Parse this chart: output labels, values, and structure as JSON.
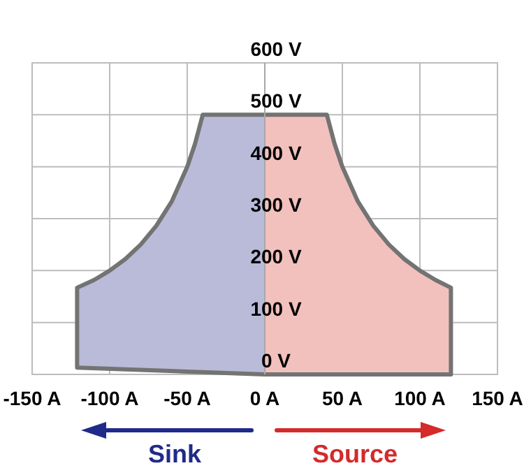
{
  "chart_data": {
    "type": "area",
    "xlim": [
      -150,
      150
    ],
    "ylim": [
      0,
      600
    ],
    "xticks": [
      {
        "value": -150,
        "label": "-150 A"
      },
      {
        "value": -100,
        "label": "-100 A"
      },
      {
        "value": -50,
        "label": "-50 A"
      },
      {
        "value": 0,
        "label": "0 A"
      },
      {
        "value": 50,
        "label": "50 A"
      },
      {
        "value": 100,
        "label": "100 A"
      },
      {
        "value": 150,
        "label": "150 A"
      }
    ],
    "yticks": [
      {
        "value": 0,
        "label": "0 V"
      },
      {
        "value": 100,
        "label": "100 V"
      },
      {
        "value": 200,
        "label": "200 V"
      },
      {
        "value": 300,
        "label": "300 V"
      },
      {
        "value": 400,
        "label": "400 V"
      },
      {
        "value": 500,
        "label": "500 V"
      },
      {
        "value": 600,
        "label": "600 V"
      }
    ],
    "grid": true,
    "series": [
      {
        "color": "#babbd9",
        "x": [
          0,
          -121,
          -121,
          -110,
          -100,
          -90,
          -80,
          -70,
          -60,
          -50,
          -45,
          -40,
          0
        ],
        "values": [
          0,
          13,
          167,
          182,
          200,
          222,
          250,
          286,
          333,
          400,
          444,
          500,
          500
        ]
      },
      {
        "color": "#f2c1bd",
        "x": [
          0,
          120,
          120,
          110,
          100,
          90,
          80,
          70,
          60,
          50,
          45,
          40,
          0
        ],
        "values": [
          0,
          0,
          167,
          182,
          200,
          222,
          250,
          286,
          333,
          400,
          444,
          500,
          500
        ]
      }
    ],
    "annotations": [
      "Sink",
      "Source"
    ]
  }
}
